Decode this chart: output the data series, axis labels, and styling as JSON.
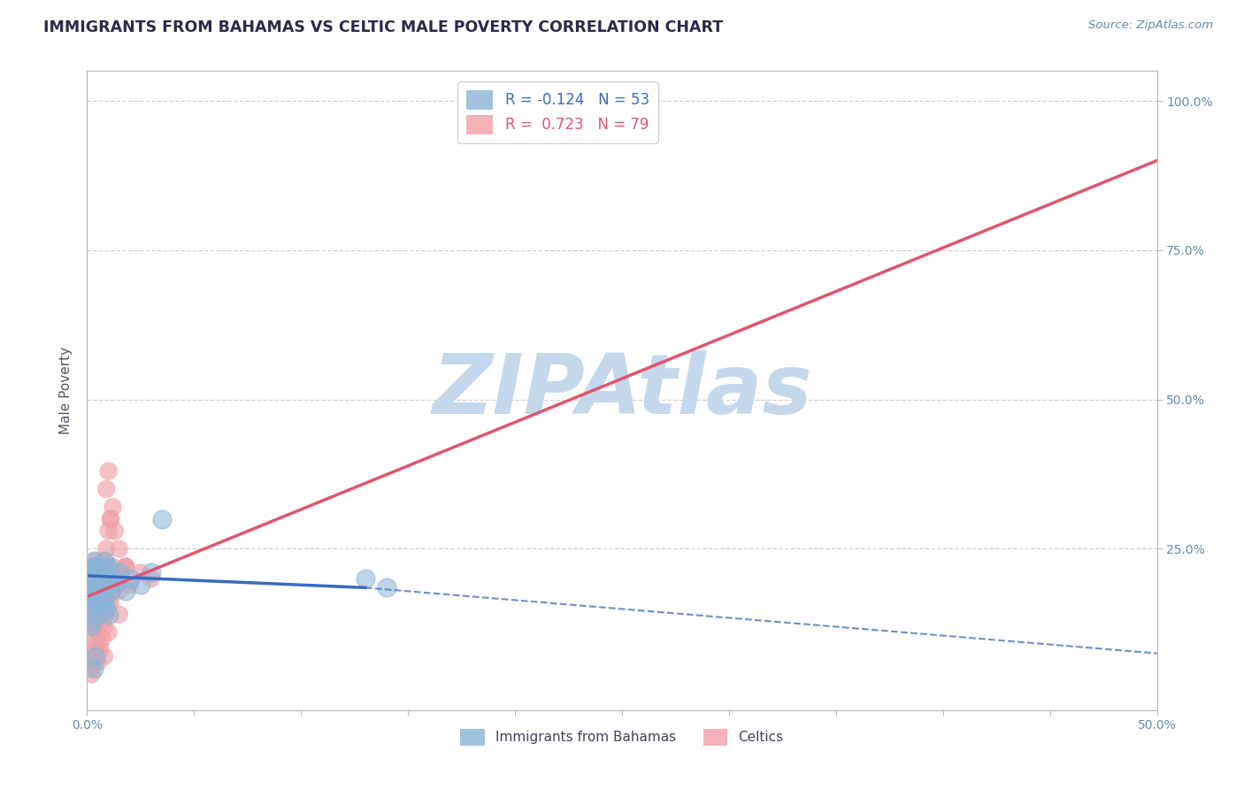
{
  "title": "IMMIGRANTS FROM BAHAMAS VS CELTIC MALE POVERTY CORRELATION CHART",
  "source_text": "Source: ZipAtlas.com",
  "ylabel_label": "Male Poverty",
  "legend_labels": [
    "Immigrants from Bahamas",
    "Celtics"
  ],
  "legend_R": [
    "-0.124",
    "0.723"
  ],
  "legend_N": [
    "53",
    "79"
  ],
  "blue_color": "#8ab4d8",
  "pink_color": "#f0a0a8",
  "blue_line_color": "#3a6bbf",
  "pink_line_color": "#e05570",
  "background_color": "#ffffff",
  "grid_color": "#d0d0d0",
  "watermark_text": "ZIPAtlas",
  "watermark_color": "#c5d8eb",
  "title_color": "#2a2a4a",
  "axis_label_color": "#6688aa",
  "tick_color": "#6688aa",
  "x_min": 0.0,
  "x_max": 0.5,
  "y_min": -0.02,
  "y_max": 1.05,
  "blue_line_x0": 0.0,
  "blue_line_y0": 0.205,
  "blue_line_x_solid_end": 0.13,
  "blue_line_x_dash_end": 0.5,
  "blue_line_y_at_solid_end": 0.185,
  "blue_line_y_at_dash_end": 0.075,
  "pink_line_x0": 0.0,
  "pink_line_y0": 0.17,
  "pink_line_x1": 0.5,
  "pink_line_y1": 0.9,
  "blue_scatter_x": [
    0.002,
    0.003,
    0.004,
    0.005,
    0.006,
    0.007,
    0.008,
    0.009,
    0.01,
    0.011,
    0.003,
    0.004,
    0.005,
    0.006,
    0.007,
    0.008,
    0.009,
    0.002,
    0.003,
    0.004,
    0.005,
    0.006,
    0.007,
    0.008,
    0.01,
    0.012,
    0.013,
    0.015,
    0.018,
    0.02,
    0.002,
    0.003,
    0.004,
    0.005,
    0.006,
    0.007,
    0.008,
    0.009,
    0.01,
    0.011,
    0.003,
    0.004,
    0.005,
    0.006,
    0.007,
    0.025,
    0.03,
    0.035,
    0.13,
    0.14,
    0.002,
    0.003,
    0.004
  ],
  "blue_scatter_y": [
    0.2,
    0.18,
    0.22,
    0.19,
    0.21,
    0.17,
    0.23,
    0.15,
    0.2,
    0.18,
    0.16,
    0.22,
    0.14,
    0.19,
    0.21,
    0.17,
    0.2,
    0.13,
    0.22,
    0.18,
    0.2,
    0.16,
    0.21,
    0.19,
    0.22,
    0.2,
    0.19,
    0.21,
    0.18,
    0.2,
    0.15,
    0.17,
    0.19,
    0.2,
    0.18,
    0.21,
    0.16,
    0.22,
    0.14,
    0.19,
    0.23,
    0.17,
    0.2,
    0.18,
    0.21,
    0.19,
    0.21,
    0.3,
    0.2,
    0.185,
    0.12,
    0.05,
    0.07
  ],
  "pink_scatter_x": [
    0.002,
    0.003,
    0.004,
    0.005,
    0.006,
    0.007,
    0.008,
    0.009,
    0.01,
    0.002,
    0.003,
    0.004,
    0.005,
    0.006,
    0.007,
    0.008,
    0.002,
    0.003,
    0.004,
    0.005,
    0.006,
    0.007,
    0.008,
    0.009,
    0.01,
    0.011,
    0.012,
    0.013,
    0.015,
    0.018,
    0.002,
    0.003,
    0.004,
    0.005,
    0.006,
    0.007,
    0.008,
    0.009,
    0.002,
    0.003,
    0.004,
    0.005,
    0.006,
    0.007,
    0.008,
    0.009,
    0.01,
    0.011,
    0.012,
    0.013,
    0.015,
    0.018,
    0.02,
    0.025,
    0.03,
    0.002,
    0.003,
    0.004,
    0.005,
    0.006,
    0.007,
    0.008,
    0.009,
    0.01,
    0.012,
    0.015,
    0.018,
    0.002,
    0.003,
    0.004,
    0.005,
    0.006,
    0.007,
    0.008,
    0.009,
    0.01,
    0.011,
    0.002,
    0.003
  ],
  "pink_scatter_y": [
    0.2,
    0.18,
    0.22,
    0.19,
    0.21,
    0.17,
    0.23,
    0.15,
    0.2,
    0.16,
    0.22,
    0.14,
    0.19,
    0.21,
    0.17,
    0.2,
    0.13,
    0.22,
    0.18,
    0.2,
    0.16,
    0.21,
    0.19,
    0.35,
    0.38,
    0.3,
    0.32,
    0.28,
    0.25,
    0.22,
    0.15,
    0.17,
    0.19,
    0.2,
    0.18,
    0.21,
    0.16,
    0.22,
    0.14,
    0.19,
    0.23,
    0.17,
    0.2,
    0.18,
    0.21,
    0.25,
    0.28,
    0.3,
    0.22,
    0.2,
    0.18,
    0.22,
    0.19,
    0.21,
    0.2,
    0.1,
    0.12,
    0.08,
    0.11,
    0.09,
    0.13,
    0.07,
    0.15,
    0.16,
    0.18,
    0.14,
    0.22,
    0.05,
    0.07,
    0.09,
    0.06,
    0.08,
    0.1,
    0.12,
    0.14,
    0.11,
    0.16,
    0.04,
    0.06
  ]
}
